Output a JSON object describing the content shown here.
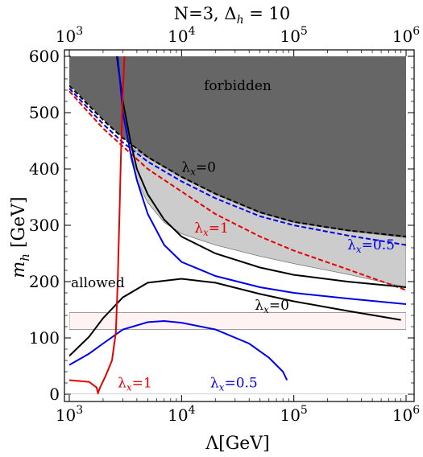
{
  "chart_data": {
    "type": "line",
    "title": "N=3, Δ",
    "title_sub": "h",
    "title_suffix": " = 10",
    "xlabel": "Λ[GeV]",
    "ylabel_main": "m",
    "ylabel_sub": "h",
    "ylabel_unit": " [GeV]",
    "x_scale": "log",
    "xlim": [
      1000,
      1000000
    ],
    "ylim": [
      0,
      600
    ],
    "x_ticks": [
      {
        "value": 1000,
        "base": "10",
        "exp": "3"
      },
      {
        "value": 10000,
        "base": "10",
        "exp": "4"
      },
      {
        "value": 100000,
        "base": "10",
        "exp": "5"
      },
      {
        "value": 1000000,
        "base": "10",
        "exp": "6"
      }
    ],
    "y_ticks": [
      0,
      100,
      200,
      300,
      400,
      500,
      600
    ],
    "colors": {
      "black": "#000000",
      "blue": "#0000e6",
      "red": "#e60000",
      "forbidden": "#666666",
      "light": "#cccccc",
      "band": "#fff2f2"
    },
    "regions": [
      {
        "name": "forbidden",
        "label": "forbidden",
        "color": "#666666",
        "upper": 600,
        "lower": [
          [
            1000,
            550
          ],
          [
            2000,
            488
          ],
          [
            3000,
            455
          ],
          [
            5000,
            420
          ],
          [
            10000,
            385
          ],
          [
            20000,
            355
          ],
          [
            50000,
            322
          ],
          [
            100000,
            305
          ],
          [
            300000,
            290
          ],
          [
            1000000,
            278
          ]
        ]
      },
      {
        "name": "light-region",
        "color": "#cccccc",
        "upper": [
          [
            3500,
            440
          ],
          [
            5000,
            420
          ],
          [
            10000,
            385
          ],
          [
            20000,
            355
          ],
          [
            50000,
            322
          ],
          [
            100000,
            305
          ],
          [
            300000,
            290
          ],
          [
            1000000,
            278
          ]
        ],
        "lower": [
          [
            3500,
            420
          ],
          [
            4000,
            380
          ],
          [
            5000,
            340
          ],
          [
            7000,
            305
          ],
          [
            10000,
            285
          ],
          [
            20000,
            265
          ],
          [
            50000,
            245
          ],
          [
            100000,
            232
          ],
          [
            300000,
            213
          ],
          [
            1000000,
            190
          ]
        ]
      }
    ],
    "band": {
      "ymin": 115,
      "ymax": 145
    },
    "allowed_label": "allowed",
    "series": [
      {
        "name": "upper-dashed-black",
        "color": "#000000",
        "dash": true,
        "points": [
          [
            1000,
            548
          ],
          [
            2000,
            487
          ],
          [
            3000,
            455
          ],
          [
            5000,
            421
          ],
          [
            10000,
            386
          ],
          [
            20000,
            356
          ],
          [
            50000,
            323
          ],
          [
            100000,
            306
          ],
          [
            300000,
            291
          ],
          [
            1000000,
            280
          ]
        ]
      },
      {
        "name": "upper-dashed-blue",
        "color": "#0000e6",
        "dash": true,
        "points": [
          [
            1000,
            543
          ],
          [
            2000,
            480
          ],
          [
            3000,
            447
          ],
          [
            5000,
            413
          ],
          [
            10000,
            378
          ],
          [
            20000,
            348
          ],
          [
            50000,
            316
          ],
          [
            100000,
            300
          ],
          [
            300000,
            282
          ],
          [
            1000000,
            265
          ]
        ]
      },
      {
        "name": "upper-dashed-red",
        "color": "#e60000",
        "dash": true,
        "points": [
          [
            1000,
            538
          ],
          [
            2000,
            472
          ],
          [
            3000,
            440
          ],
          [
            5000,
            400
          ],
          [
            10000,
            360
          ],
          [
            20000,
            320
          ],
          [
            50000,
            280
          ],
          [
            100000,
            255
          ],
          [
            300000,
            222
          ],
          [
            1000000,
            185
          ],
          [
            1060000,
            170
          ]
        ]
      },
      {
        "name": "upper-black-solid",
        "color": "#000000",
        "dash": false,
        "points": [
          [
            2650,
            600
          ],
          [
            3000,
            520
          ],
          [
            3500,
            450
          ],
          [
            4000,
            400
          ],
          [
            5000,
            355
          ],
          [
            7000,
            310
          ],
          [
            10000,
            280
          ],
          [
            20000,
            250
          ],
          [
            50000,
            225
          ],
          [
            100000,
            212
          ],
          [
            300000,
            200
          ],
          [
            1000000,
            190
          ]
        ]
      },
      {
        "name": "upper-blue-solid",
        "color": "#0000e6",
        "dash": false,
        "points": [
          [
            2700,
            600
          ],
          [
            3000,
            500
          ],
          [
            3500,
            430
          ],
          [
            4000,
            380
          ],
          [
            5000,
            320
          ],
          [
            7000,
            265
          ],
          [
            10000,
            235
          ],
          [
            20000,
            210
          ],
          [
            50000,
            190
          ],
          [
            100000,
            180
          ],
          [
            300000,
            170
          ],
          [
            1000000,
            160
          ]
        ]
      },
      {
        "name": "lower-black",
        "color": "#000000",
        "dash": false,
        "points": [
          [
            1000,
            68
          ],
          [
            1500,
            102
          ],
          [
            2000,
            135
          ],
          [
            3000,
            172
          ],
          [
            5000,
            198
          ],
          [
            10000,
            205
          ],
          [
            20000,
            198
          ],
          [
            50000,
            178
          ],
          [
            100000,
            165
          ],
          [
            300000,
            148
          ],
          [
            900000,
            132
          ]
        ]
      },
      {
        "name": "lower-blue",
        "color": "#0000e6",
        "dash": false,
        "points": [
          [
            1000,
            52
          ],
          [
            1500,
            72
          ],
          [
            2000,
            90
          ],
          [
            3000,
            115
          ],
          [
            5000,
            128
          ],
          [
            7000,
            130
          ],
          [
            10000,
            127
          ],
          [
            20000,
            115
          ],
          [
            40000,
            90
          ],
          [
            60000,
            65
          ],
          [
            80000,
            40
          ],
          [
            87000,
            25
          ]
        ]
      },
      {
        "name": "red-lambda1",
        "color": "#e60000",
        "dash": false,
        "points": [
          [
            1000,
            25
          ],
          [
            1500,
            22
          ],
          [
            1750,
            12
          ],
          [
            1800,
            2
          ],
          [
            1880,
            12
          ],
          [
            2100,
            32
          ],
          [
            2400,
            60
          ],
          [
            2600,
            110
          ],
          [
            2700,
            200
          ],
          [
            2800,
            320
          ],
          [
            2900,
            440
          ],
          [
            3000,
            540
          ],
          [
            3100,
            600
          ]
        ]
      }
    ],
    "annotations": [
      {
        "text": "λ",
        "sub": "x",
        "suffix": "=0",
        "color": "#000000",
        "x": 10000,
        "y": 395
      },
      {
        "text": "λ",
        "sub": "x",
        "suffix": "=1",
        "color": "#e60000",
        "x": 13000,
        "y": 287
      },
      {
        "text": "λ",
        "sub": "x",
        "suffix": "=0.5",
        "color": "#0000e6",
        "x": 300000,
        "y": 257
      },
      {
        "text": "λ",
        "sub": "x",
        "suffix": "=0",
        "color": "#000000",
        "x": 45000,
        "y": 150
      },
      {
        "text": "λ",
        "sub": "x",
        "suffix": "=1",
        "color": "#e60000",
        "x": 2700,
        "y": 12
      },
      {
        "text": "λ",
        "sub": "x",
        "suffix": "=0.5",
        "color": "#0000e6",
        "x": 18000,
        "y": 12
      }
    ]
  }
}
